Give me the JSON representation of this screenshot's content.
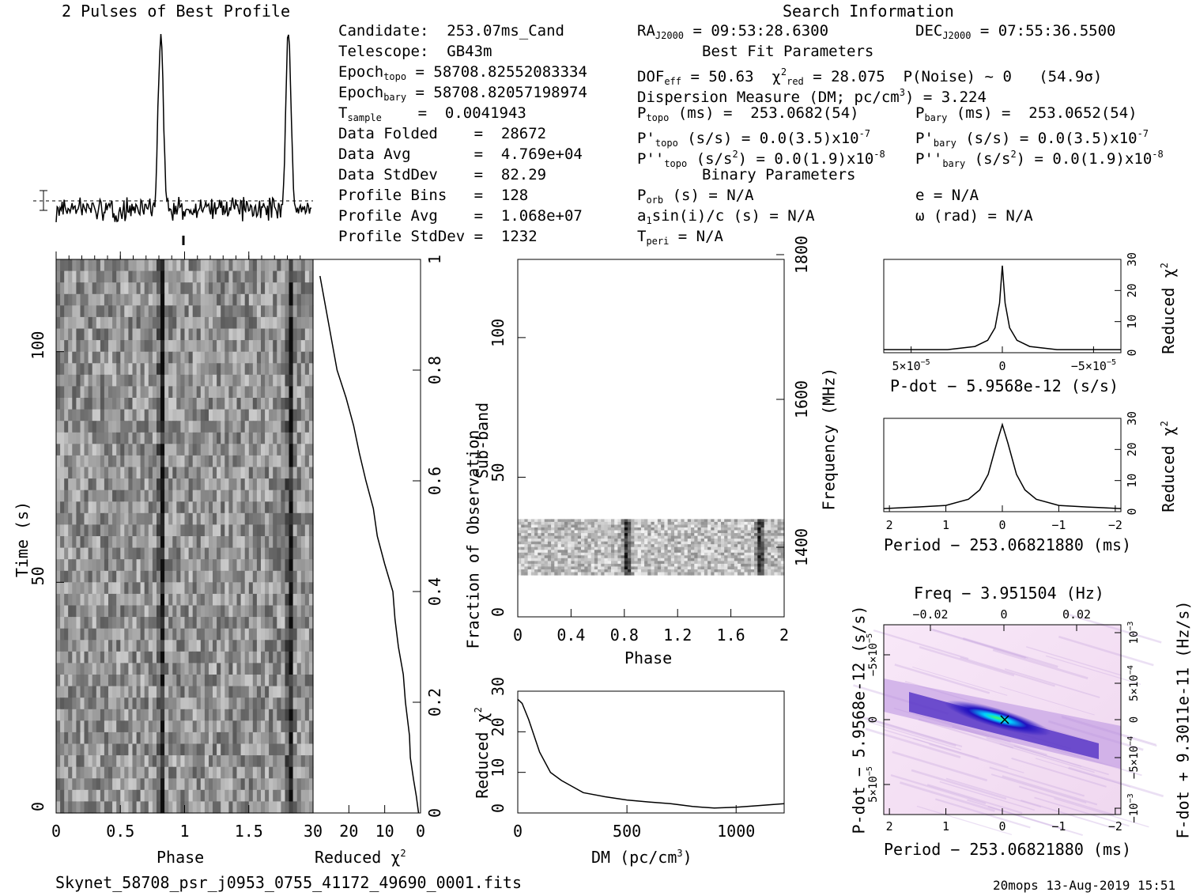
{
  "titles": {
    "profile": "2 Pulses of Best Profile",
    "search": "Search Information",
    "best_fit": "Best Fit Parameters",
    "binary": "Binary Parameters"
  },
  "candidate_info": {
    "candidate": "Candidate:  253.07ms_Cand",
    "telescope": "Telescope:  GB43m",
    "epoch_topo_label": "Epoch",
    "epoch_topo_sub": "topo",
    "epoch_topo_val": " = 58708.82552083334",
    "epoch_bary_label": "Epoch",
    "epoch_bary_sub": "bary",
    "epoch_bary_val": " = 58708.82057198974",
    "tsample_label": "T",
    "tsample_sub": "sample",
    "tsample_val": "    =  0.0041943",
    "data_folded": "Data Folded    =  28672",
    "data_avg": "Data Avg       =  4.769e+04",
    "data_stddev": "Data StdDev    =  82.29",
    "profile_bins": "Profile Bins   =  128",
    "profile_avg": "Profile Avg    =  1.068e+07",
    "profile_stddev": "Profile StdDev =  1232"
  },
  "search_info": {
    "ra": "RA",
    "ra_sub": "J2000",
    "ra_val": " = 09:53:28.6300",
    "dec": "DEC",
    "dec_sub": "J2000",
    "dec_val": " = 07:55:36.5500",
    "dof_line": "DOF",
    "dof_sub": "eff",
    "dof_val": " = 50.63  χ",
    "chi_sup": "2",
    "chi_sub": "red",
    "chi_val": " = 28.075  P(Noise) ~ 0   (54.9σ)",
    "dm_line": "Dispersion Measure (DM; pc/cm",
    "dm_sup": "3",
    "dm_val": ") = 3.224",
    "ptopo": "P",
    "ptopo_sub": "topo",
    "ptopo_val": " (ms) =  253.0682(54)",
    "pbary": "P",
    "pbary_sub": "bary",
    "pbary_val": " (ms) =  253.0652(54)",
    "pdtopo": "P'",
    "pdtopo_sub": "topo",
    "pdtopo_val": " (s/s) = 0.0(3.5)x10",
    "pdtopo_exp": "-7",
    "pdbary": "P'",
    "pdbary_sub": "bary",
    "pdbary_val": " (s/s) = 0.0(3.5)x10",
    "pdbary_exp": "-7",
    "pddtopo": "P''",
    "pddtopo_sub": "topo",
    "pddtopo_val": " (s/s",
    "pddtopo_sup": "2",
    "pddtopo_val2": ") = 0.0(1.9)x10",
    "pddtopo_exp": "-8",
    "pddbary": "P''",
    "pddbary_sub": "bary",
    "pddbary_val": " (s/s",
    "pddbary_sup": "2",
    "pddbary_val2": ") = 0.0(1.9)x10",
    "pddbary_exp": "-8",
    "porb": "P",
    "porb_sub": "orb",
    "porb_val": " (s) = N/A",
    "ecc": "e = N/A",
    "a1": "a",
    "a1_sub": "1",
    "a1_val": "sin(i)/c (s) = N/A",
    "omega": "ω (rad) = N/A",
    "tperi": "T",
    "tperi_sub": "peri",
    "tperi_val": " = N/A"
  },
  "axes": {
    "time_label": "Time (s)",
    "phase_label": "Phase",
    "reduced_chi": "Reduced χ",
    "chi_sup": "2",
    "fraction_label": "Fraction of Observation",
    "subband_label": "Sub-band",
    "frequency_label": "Frequency (MHz)",
    "dm_label": "DM (pc/cm",
    "dm_sup": "3",
    "dm_close": ")",
    "pdot_label": "P-dot − 5.9568e-12 (s/s)",
    "period_label": "Period − 253.06821880 (ms)",
    "freq_label": "Freq − 3.951504 (Hz)",
    "pdot_vert": "P-dot − 5.9568e-12 (s/s)",
    "fdot_vert": "F-dot + 9.3011e-11 (Hz/s)"
  },
  "ticks": {
    "time": [
      "0",
      "50",
      "100"
    ],
    "phase": [
      "0",
      "0.5",
      "1",
      "1.5"
    ],
    "chi_x": [
      "30",
      "20",
      "10",
      "0"
    ],
    "fraction": [
      "0",
      "0.2",
      "0.4",
      "0.6",
      "0.8",
      "1"
    ],
    "subband": [
      "0",
      "50",
      "100"
    ],
    "sub_phase": [
      "0",
      "0.4",
      "0.8",
      "1.2",
      "1.6",
      "2"
    ],
    "freq": [
      "1400",
      "1600",
      "1800"
    ],
    "dm_chi_y": [
      "0",
      "10",
      "20",
      "30"
    ],
    "dm_x": [
      "0",
      "500",
      "1000"
    ],
    "small_chi": [
      "0",
      "10",
      "20",
      "30"
    ],
    "pdot_x": [
      "5×10",
      "0",
      "−5×10"
    ],
    "pdot_x_exp": "−5",
    "period_x": [
      "2",
      "1",
      "0",
      "−1",
      "−2"
    ],
    "freq_top": [
      "−0.02",
      "0",
      "0.02"
    ],
    "pdot_y": [
      "−5×10",
      "0",
      "5×10"
    ],
    "pdot_y_exp": "−5",
    "fdot_y": [
      "10",
      "5×10",
      "0",
      "−5×10",
      "−10"
    ],
    "fdot_y_exp": [
      "−3",
      "−4",
      "",
      "−4",
      "−3"
    ]
  },
  "footer": {
    "filename": "Skynet_58708_psr_j0953_0755_41172_49690_0001.fits",
    "stamp": "20mops 13-Aug-2019 15:51"
  },
  "chart_data": [
    {
      "type": "line",
      "title": "2 Pulses of Best Profile",
      "xlabel": "",
      "ylabel": "",
      "xlim": [
        0,
        2
      ],
      "peaks": [
        {
          "phase": 0.82,
          "rel_height": 1.0
        },
        {
          "phase": 1.82,
          "rel_height": 1.0
        }
      ],
      "baseline_relative": 0.06
    },
    {
      "type": "heatmap",
      "xlabel": "Phase",
      "ylabel": "Time (s)",
      "xlim": [
        0,
        2
      ],
      "ylim": [
        0,
        120
      ],
      "pulse_phases": [
        0.82,
        1.82
      ]
    },
    {
      "type": "line",
      "xlabel": "Reduced χ2",
      "ylabel": "Fraction of Observation",
      "xlim": [
        30,
        0
      ],
      "ylim": [
        0,
        1
      ],
      "x": [
        0.5,
        1,
        2,
        3,
        3,
        4,
        5,
        6,
        7,
        8,
        10,
        12,
        13,
        15,
        17,
        19,
        21,
        23,
        26,
        28
      ],
      "y": [
        0.0,
        0.03,
        0.06,
        0.1,
        0.14,
        0.2,
        0.25,
        0.3,
        0.35,
        0.4,
        0.45,
        0.5,
        0.55,
        0.6,
        0.65,
        0.7,
        0.75,
        0.8,
        0.9,
        0.97
      ]
    },
    {
      "type": "heatmap",
      "xlabel": "Phase",
      "ylabel": "Sub-band",
      "y2label": "Frequency (MHz)",
      "xlim": [
        0,
        2
      ],
      "ylim": [
        0,
        128
      ],
      "filled_subbands": [
        15,
        35
      ],
      "pulse_phases": [
        0.82,
        1.82
      ]
    },
    {
      "type": "line",
      "xlabel": "DM (pc/cm3)",
      "ylabel": "Reduced χ2",
      "xlim": [
        0,
        1220
      ],
      "ylim": [
        0,
        30
      ],
      "x": [
        0,
        20,
        50,
        100,
        150,
        200,
        250,
        300,
        400,
        500,
        600,
        700,
        800,
        900,
        1000,
        1100,
        1220
      ],
      "y": [
        28,
        27,
        23,
        15,
        10,
        8,
        6.5,
        5,
        4,
        3.2,
        2.7,
        2.3,
        1.6,
        1.2,
        1.4,
        1.8,
        2.3
      ]
    },
    {
      "type": "line",
      "xlabel": "P-dot − 5.9568e-12 (s/s)",
      "ylabel": "Reduced χ2",
      "xlim": [
        6.5e-05,
        -6.5e-05
      ],
      "ylim": [
        0,
        30
      ],
      "x": [
        6.5e-05,
        3e-05,
        1.5e-05,
        8e-06,
        4e-06,
        1.5e-06,
        0,
        -1.5e-06,
        -4e-06,
        -8e-06,
        -1.5e-05,
        -3e-05,
        -6.5e-05
      ],
      "y": [
        1,
        1,
        2,
        4,
        8,
        16,
        28,
        16,
        8,
        4,
        2,
        1,
        1
      ]
    },
    {
      "type": "line",
      "xlabel": "Period − 253.06821880 (ms)",
      "ylabel": "Reduced χ2",
      "xlim": [
        2.1,
        -2.1
      ],
      "ylim": [
        0,
        30
      ],
      "x": [
        2.1,
        1.5,
        1.0,
        0.6,
        0.4,
        0.25,
        0.1,
        0,
        -0.1,
        -0.25,
        -0.4,
        -0.6,
        -1.0,
        -1.5,
        -2.1
      ],
      "y": [
        1,
        1.5,
        2,
        4,
        7,
        12,
        22,
        28,
        22,
        12,
        7,
        4,
        2,
        1.5,
        1
      ]
    },
    {
      "type": "heatmap",
      "xlabel": "Period − 253.06821880 (ms)",
      "ylabel": "P-dot − 5.9568e-12 (s/s)",
      "x2label": "Freq − 3.951504 (Hz)",
      "y2label": "F-dot + 9.3011e-11 (Hz/s)",
      "xlim": [
        2.1,
        -2.1
      ],
      "colors": [
        "#f4e0f4",
        "#b890e0",
        "#2010c0",
        "#00d0ff",
        "#40ff60"
      ]
    }
  ]
}
